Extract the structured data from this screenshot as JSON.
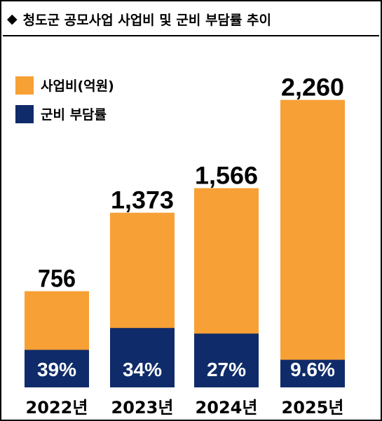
{
  "title": "청도군 공모사업 사업비 및 군비 부담률 추이",
  "title_icon": "diamond-icon",
  "colors": {
    "cost": "#F7A035",
    "share": "#0F2B69",
    "share_text": "#ffffff",
    "text": "#000000"
  },
  "chart_data": {
    "type": "bar",
    "categories": [
      "2022년",
      "2023년",
      "2024년",
      "2025년"
    ],
    "series": [
      {
        "name": "사업비(억원)",
        "values": [
          756,
          1373,
          1566,
          2260
        ],
        "labels": [
          "756",
          "1,373",
          "1,566",
          "2,260"
        ]
      },
      {
        "name": "군비 부담률",
        "values": [
          39,
          34,
          27,
          9.6
        ],
        "labels": [
          "39%",
          "34%",
          "27%",
          "9.6%"
        ]
      }
    ],
    "legend_position": "top-left",
    "grid": false
  }
}
